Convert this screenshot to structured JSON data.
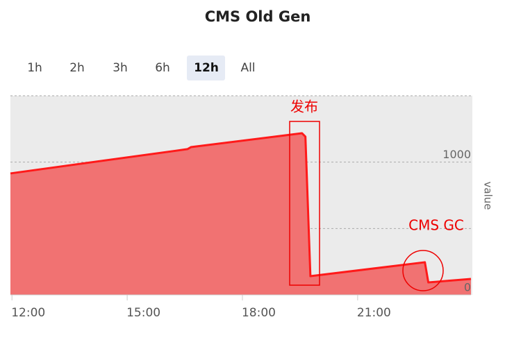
{
  "chart_data": {
    "type": "area",
    "title": "CMS Old Gen",
    "range_buttons": [
      "1h",
      "2h",
      "3h",
      "6h",
      "12h",
      "All"
    ],
    "selected_range": 4,
    "x": [
      11.96,
      16.57,
      16.66,
      19.55,
      19.64,
      19.77,
      22.75,
      22.84,
      23.95
    ],
    "series": [
      {
        "name": "value",
        "color": "#ff1a1a",
        "fill": "#f17272",
        "values": [
          915,
          1098,
          1113,
          1218,
          1192,
          141,
          246,
          94,
          120
        ]
      }
    ],
    "xlim": [
      11.96,
      23.95
    ],
    "xticks": [
      {
        "value": 12,
        "label": "12:00"
      },
      {
        "value": 15,
        "label": "15:00"
      },
      {
        "value": 18,
        "label": "18:00"
      },
      {
        "value": 21,
        "label": "21:00"
      }
    ],
    "ylim": [
      0,
      1500
    ],
    "yticks": [
      0,
      1000
    ],
    "minor_grid": [
      500,
      1500
    ],
    "y_label": "value",
    "annotations": [
      {
        "text": "发布"
      },
      {
        "text": "CMS GC"
      }
    ]
  }
}
